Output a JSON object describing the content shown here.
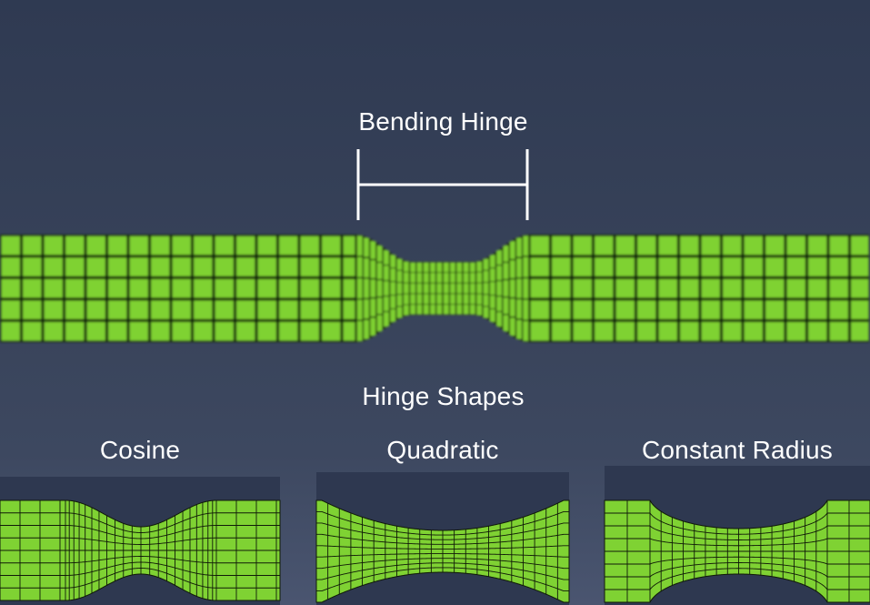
{
  "main": {
    "bending_hinge_label": "Bending Hinge",
    "hinge_shapes_label": "Hinge Shapes"
  },
  "shapes": [
    {
      "label": "Cosine",
      "profile": "cosine"
    },
    {
      "label": "Quadratic",
      "profile": "quadratic"
    },
    {
      "label": "Constant Radius",
      "profile": "constant-radius"
    }
  ],
  "colors": {
    "mesh_green": "#7fd233",
    "mesh_line": "#101a08",
    "panel_background": "#2e3850",
    "text": "#ffffff"
  }
}
